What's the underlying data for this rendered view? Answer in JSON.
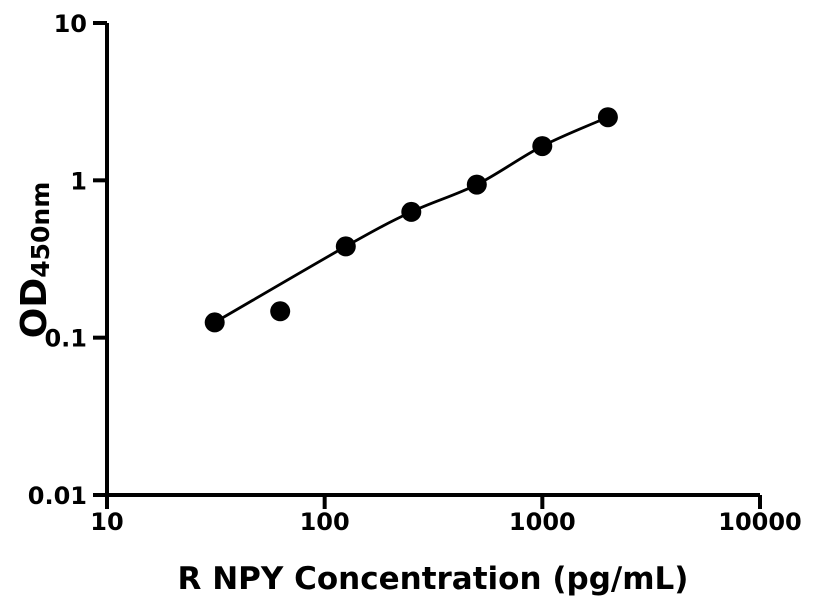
{
  "figure": {
    "background_color": "#ffffff",
    "foreground_color": "#000000"
  },
  "chart_data": {
    "type": "scatter",
    "title": "",
    "xlabel": "R NPY Concentration (pg/mL)",
    "ylabel_main": "OD",
    "ylabel_subscript": "450nm",
    "x_scale": "log",
    "y_scale": "log",
    "xlim": [
      10,
      10000
    ],
    "ylim": [
      0.01,
      10
    ],
    "x_ticks": [
      {
        "value": 10,
        "label": "10"
      },
      {
        "value": 100,
        "label": "100"
      },
      {
        "value": 1000,
        "label": "1000"
      },
      {
        "value": 10000,
        "label": "10000"
      }
    ],
    "y_ticks": [
      {
        "value": 0.01,
        "label": "0.01"
      },
      {
        "value": 0.1,
        "label": "0.1"
      },
      {
        "value": 1,
        "label": "1"
      },
      {
        "value": 10,
        "label": "10"
      }
    ],
    "grid": false,
    "legend": false,
    "series": [
      {
        "name": "standard-curve-points",
        "marker": "filled-circle",
        "color": "#000000",
        "points": [
          {
            "x": 31.25,
            "y": 0.125
          },
          {
            "x": 62.5,
            "y": 0.147
          },
          {
            "x": 125,
            "y": 0.38
          },
          {
            "x": 250,
            "y": 0.63
          },
          {
            "x": 500,
            "y": 0.94
          },
          {
            "x": 1000,
            "y": 1.65
          },
          {
            "x": 2000,
            "y": 2.52
          }
        ]
      }
    ],
    "trendline": {
      "type": "fitted-curve",
      "color": "#000000",
      "passes_through_x": [
        31.25,
        125,
        250,
        500,
        1000,
        2000
      ],
      "skips_x": [
        62.5
      ]
    }
  }
}
